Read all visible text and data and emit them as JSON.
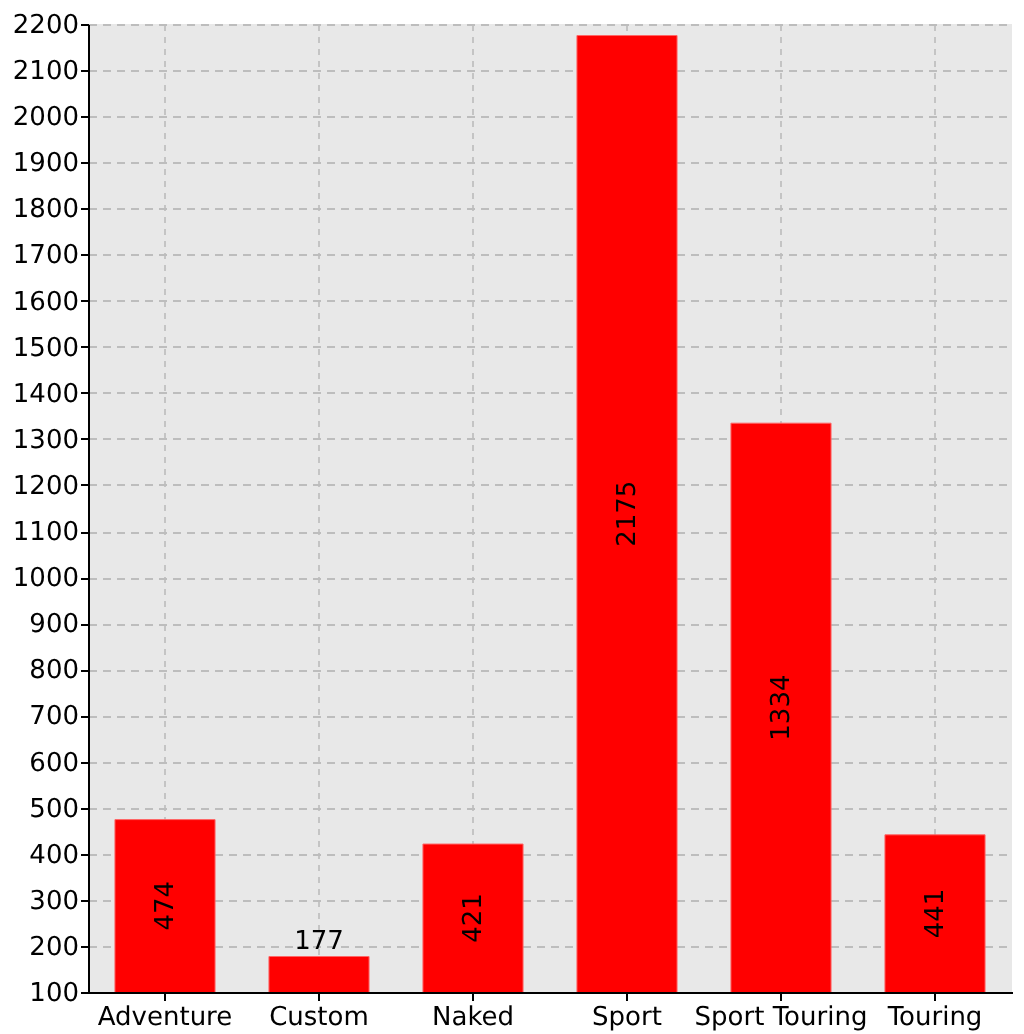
{
  "chart_data": {
    "type": "bar",
    "categories": [
      "Adventure",
      "Custom",
      "Naked",
      "Sport",
      "Sport Touring",
      "Touring"
    ],
    "values": [
      474,
      177,
      421,
      2175,
      1334,
      441
    ],
    "color": "#ff0000",
    "ylim": [
      100,
      2200
    ],
    "yticks": [
      100,
      200,
      300,
      400,
      500,
      600,
      700,
      800,
      900,
      1000,
      1100,
      1200,
      1300,
      1400,
      1500,
      1600,
      1700,
      1800,
      1900,
      2000,
      2100,
      2200
    ],
    "grid": true,
    "data_labels": true
  }
}
